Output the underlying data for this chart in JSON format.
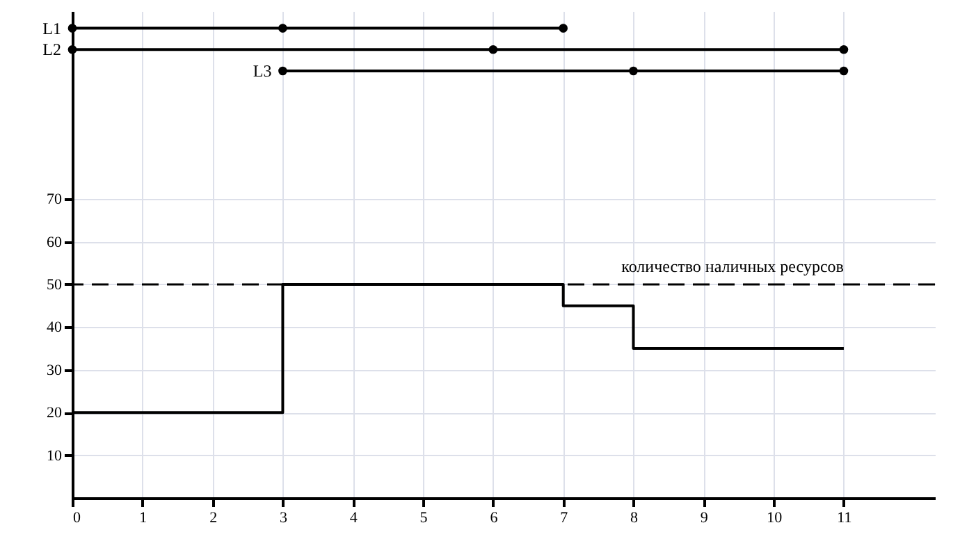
{
  "chart_data": {
    "type": "step",
    "xlim": [
      0,
      12.3
    ],
    "ylim": [
      0,
      114
    ],
    "xticks": [
      0,
      1,
      2,
      3,
      4,
      5,
      6,
      7,
      8,
      9,
      10,
      11
    ],
    "yticks": [
      10,
      20,
      30,
      40,
      50,
      60,
      70
    ],
    "grid": true,
    "line_style": "solid",
    "series": [
      {
        "color": "#000000",
        "x": [
          0,
          3,
          7,
          8,
          11
        ],
        "values": [
          20,
          50,
          45,
          35,
          35
        ]
      },
      {
        "name": "L1",
        "type": "line",
        "marker": "circle",
        "color": "#000000",
        "x": [
          0,
          3,
          7
        ],
        "values": [
          110,
          110,
          110
        ]
      },
      {
        "name": "L2",
        "type": "line",
        "marker": "circle",
        "color": "#000000",
        "x": [
          0,
          6,
          11
        ],
        "values": [
          105,
          105,
          105
        ]
      },
      {
        "name": "L3",
        "type": "line",
        "marker": "circle",
        "color": "#000000",
        "x": [
          3,
          8,
          11
        ],
        "values": [
          100,
          100,
          100
        ]
      }
    ],
    "ref_lines": [
      {
        "axis": "y",
        "value": 50,
        "label": "количество наличных ресурсов",
        "color": "#000000",
        "line_style": "dashed"
      }
    ]
  }
}
